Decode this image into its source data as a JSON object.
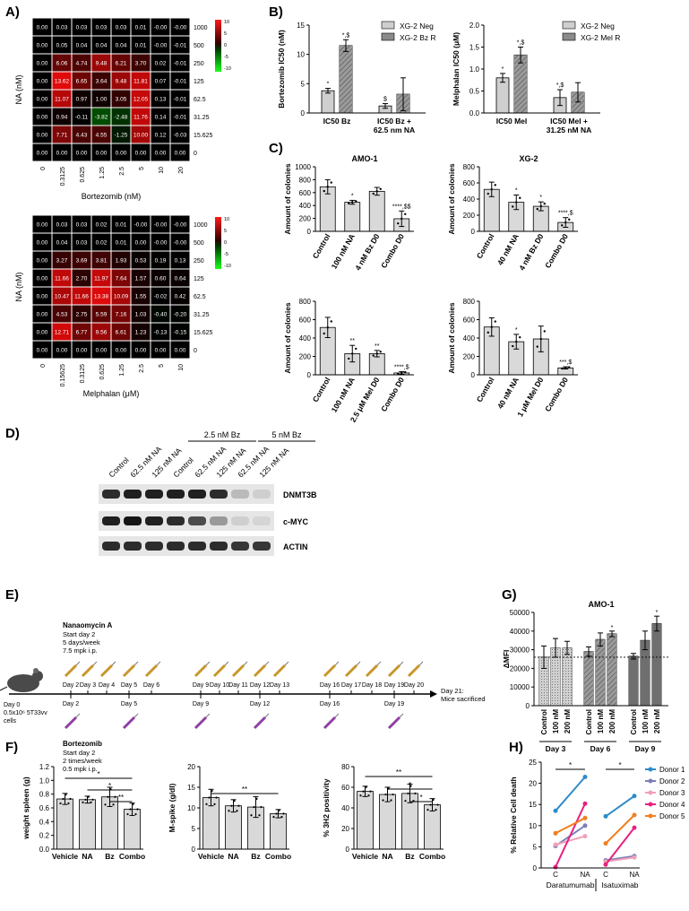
{
  "panel_labels": {
    "A": "A)",
    "B": "B)",
    "C": "C)",
    "D": "D)",
    "E": "E)",
    "F": "F)",
    "G": "G)",
    "H": "H)"
  },
  "chart_data": [
    {
      "type": "heatmap",
      "id": "A1",
      "xlabel": "Bortezomib (nM)",
      "ylabel": "NA (nM)",
      "x_ticks": [
        "0",
        "0.3125",
        "0.625",
        "1.25",
        "2.5",
        "5",
        "10",
        "20"
      ],
      "y_ticks": [
        "1000",
        "500",
        "250",
        "125",
        "62.5",
        "31.25",
        "15.625",
        "0"
      ],
      "colorbar_ticks": [
        "10",
        "5",
        "0",
        "-5",
        "-10"
      ],
      "values": [
        [
          "0.00",
          "0.03",
          "0.03",
          "0.03",
          "0.03",
          "0.01",
          "-0.00",
          "-0.00"
        ],
        [
          "0.00",
          "0.05",
          "0.04",
          "0.04",
          "0.04",
          "0.01",
          "-0.00",
          "-0.01"
        ],
        [
          "0.00",
          "6.06",
          "4.74",
          "9.48",
          "6.21",
          "3.70",
          "0.02",
          "-0.01"
        ],
        [
          "0.00",
          "13.62",
          "6.65",
          "3.64",
          "9.48",
          "11.81",
          "0.07",
          "-0.01"
        ],
        [
          "0.00",
          "11.07",
          "0.97",
          "1.00",
          "3.05",
          "12.05",
          "0.13",
          "-0.01"
        ],
        [
          "0.00",
          "0.94",
          "-0.11",
          "-3.82",
          "-2.48",
          "11.76",
          "0.14",
          "-0.01"
        ],
        [
          "0.00",
          "7.71",
          "4.43",
          "4.55",
          "-1.25",
          "10.00",
          "0.12",
          "-0.03"
        ],
        [
          "0.00",
          "0.00",
          "0.00",
          "0.00",
          "0.00",
          "0.00",
          "0.00",
          "0.00"
        ]
      ]
    },
    {
      "type": "heatmap",
      "id": "A2",
      "xlabel": "Melphalan (μM)",
      "ylabel": "NA (nM)",
      "x_ticks": [
        "0",
        "0.15625",
        "0.3125",
        "0.625",
        "1.25",
        "2.5",
        "5",
        "10"
      ],
      "y_ticks": [
        "1000",
        "500",
        "250",
        "125",
        "62.5",
        "31.25",
        "15.625",
        "0"
      ],
      "colorbar_ticks": [
        "10",
        "5",
        "0",
        "-5",
        "-10"
      ],
      "values": [
        [
          "0.00",
          "0.03",
          "0.03",
          "0.02",
          "0.01",
          "-0.00",
          "-0.00",
          "-0.00"
        ],
        [
          "0.00",
          "0.04",
          "0.03",
          "0.02",
          "0.01",
          "0.00",
          "-0.00",
          "-0.00"
        ],
        [
          "0.00",
          "3.27",
          "3.69",
          "3.81",
          "1.93",
          "0.53",
          "0.19",
          "0.13"
        ],
        [
          "0.00",
          "11.66",
          "2.70",
          "11.97",
          "7.64",
          "1.57",
          "0.60",
          "0.64"
        ],
        [
          "0.00",
          "10.47",
          "11.66",
          "13.38",
          "10.09",
          "1.55",
          "-0.02",
          "0.42"
        ],
        [
          "0.00",
          "4.53",
          "2.75",
          "5.59",
          "7.16",
          "1.03",
          "-0.40",
          "-0.20"
        ],
        [
          "0.00",
          "12.71",
          "6.77",
          "9.56",
          "6.61",
          "1.23",
          "-0.13",
          "-0.15"
        ],
        [
          "0.00",
          "0.00",
          "0.00",
          "0.00",
          "0.00",
          "0.00",
          "0.00",
          "0.00"
        ]
      ]
    },
    {
      "type": "bar",
      "id": "B1",
      "ylabel": "Bortezomib IC50 (nM)",
      "ylim": [
        0,
        15
      ],
      "yticks": [
        "0",
        "5",
        "10",
        "15"
      ],
      "categories": [
        "IC50 Bz",
        "IC50 Bz +\n62.5 nm NA"
      ],
      "series": [
        {
          "name": "XG-2 Neg",
          "values": [
            3.8,
            1.2
          ],
          "err": [
            0.4,
            0.4
          ]
        },
        {
          "name": "XG-2 Bz R",
          "values": [
            11.5,
            3.2
          ],
          "err": [
            1.0,
            2.8
          ]
        }
      ],
      "annotations": [
        "*",
        "*,$",
        "$"
      ],
      "legend": "top-right"
    },
    {
      "type": "bar",
      "id": "B2",
      "ylabel": "Melphalan IC50 (μM)",
      "ylim": [
        0,
        2.0
      ],
      "yticks": [
        "0.0",
        "0.5",
        "1.0",
        "1.5",
        "2.0"
      ],
      "categories": [
        "IC50 Mel",
        "IC50 Mel +\n31.25 nM NA"
      ],
      "series": [
        {
          "name": "XG-2 Neg",
          "values": [
            0.8,
            0.35
          ],
          "err": [
            0.1,
            0.18
          ]
        },
        {
          "name": "XG-2 Mel R",
          "values": [
            1.32,
            0.47
          ],
          "err": [
            0.18,
            0.22
          ]
        }
      ],
      "annotations": [
        "*",
        "*,$",
        "*,$"
      ],
      "legend": "top-right"
    },
    {
      "type": "bar",
      "id": "C1",
      "title": "AMO-1",
      "ylabel": "Amount of colonies",
      "ylim": [
        0,
        1000
      ],
      "yticks": [
        "0",
        "200",
        "400",
        "600",
        "800",
        "1000"
      ],
      "categories": [
        "Control",
        "100 nM NA",
        "4 nM Bz D0",
        "Combo D0"
      ],
      "values": [
        690,
        450,
        620,
        195
      ],
      "err": [
        110,
        30,
        60,
        120
      ],
      "annotations": [
        "",
        "*",
        "",
        "****,$$"
      ]
    },
    {
      "type": "bar",
      "id": "C2",
      "title": "XG-2",
      "ylabel": "Amount of colonies",
      "ylim": [
        0,
        800
      ],
      "yticks": [
        "0",
        "200",
        "400",
        "600",
        "800"
      ],
      "categories": [
        "Control",
        "40 nM NA",
        "4 nM Bz D0",
        "Combo D0"
      ],
      "values": [
        520,
        360,
        310,
        110
      ],
      "err": [
        90,
        90,
        55,
        60
      ],
      "annotations": [
        "",
        "*",
        "*",
        "****,$"
      ]
    },
    {
      "type": "bar",
      "id": "C3",
      "ylabel": "Amount of colonies",
      "ylim": [
        0,
        800
      ],
      "yticks": [
        "0",
        "200",
        "400",
        "600",
        "800"
      ],
      "categories": [
        "Control",
        "100 nM NA",
        "2.5 μM Mel D0",
        "Combo D0"
      ],
      "values": [
        515,
        230,
        230,
        20
      ],
      "err": [
        110,
        90,
        35,
        15
      ],
      "annotations": [
        "",
        "**",
        "**",
        "****,$"
      ]
    },
    {
      "type": "bar",
      "id": "C4",
      "ylabel": "Amount of colonies",
      "ylim": [
        0,
        800
      ],
      "yticks": [
        "0",
        "200",
        "400",
        "600",
        "800"
      ],
      "categories": [
        "Control",
        "40 nM NA",
        "1 μM Mel D0",
        "Combo D0"
      ],
      "values": [
        520,
        360,
        390,
        75
      ],
      "err": [
        100,
        80,
        140,
        12
      ],
      "annotations": [
        "",
        "*",
        "",
        "***,$"
      ]
    },
    {
      "type": "bar",
      "id": "G",
      "title": "AMO-1",
      "ylabel": "ΔMFI",
      "ylim": [
        0,
        50000
      ],
      "yticks": [
        "0",
        "10000",
        "20000",
        "30000",
        "40000",
        "50000"
      ],
      "groups": [
        "Day 3",
        "Day 6",
        "Day 9"
      ],
      "categories": [
        "Control",
        "100 nM",
        "200 nM"
      ],
      "values": [
        [
          26000,
          31000,
          31000
        ],
        [
          29000,
          35500,
          38500
        ],
        [
          26500,
          35000,
          44000
        ]
      ],
      "err": [
        [
          6000,
          5000,
          3500
        ],
        [
          2500,
          3500,
          1500
        ],
        [
          1500,
          5000,
          4000
        ]
      ],
      "annotations": [
        "",
        "",
        "",
        "",
        "",
        "*",
        "",
        "",
        "*"
      ],
      "reference_line": 26000
    },
    {
      "type": "bar",
      "id": "F1",
      "ylabel": "weight spleen (g)",
      "ylim": [
        0,
        1.2
      ],
      "yticks": [
        "0.0",
        "0.2",
        "0.4",
        "0.6",
        "0.8",
        "1.0",
        "1.2"
      ],
      "categories": [
        "Vehicle",
        "NA",
        "Bz",
        "Combo"
      ],
      "values": [
        0.73,
        0.72,
        0.76,
        0.58
      ],
      "err": [
        0.08,
        0.05,
        0.14,
        0.09
      ],
      "significance": [
        "*",
        "*",
        "**"
      ]
    },
    {
      "type": "bar",
      "id": "F2",
      "ylabel": "M-spike (g/dl)",
      "ylim": [
        0,
        20
      ],
      "yticks": [
        "0",
        "5",
        "10",
        "15",
        "20"
      ],
      "categories": [
        "Vehicle",
        "NA",
        "Bz",
        "Combo"
      ],
      "values": [
        12.5,
        10.5,
        10.2,
        8.6
      ],
      "err": [
        2.0,
        1.5,
        2.5,
        1.0
      ],
      "significance": [
        "**"
      ]
    },
    {
      "type": "bar",
      "id": "F3",
      "ylabel": "% 3H2 positivity",
      "ylim": [
        0,
        80
      ],
      "yticks": [
        "0",
        "20",
        "40",
        "60",
        "80"
      ],
      "categories": [
        "Vehicle",
        "NA",
        "Bz",
        "Combo"
      ],
      "values": [
        56,
        53,
        54,
        43
      ],
      "err": [
        5,
        7,
        9,
        6
      ],
      "significance": [
        "**",
        "*",
        "*"
      ]
    },
    {
      "type": "line",
      "id": "H",
      "ylabel": "% Relative Cell death",
      "ylim": [
        0,
        25
      ],
      "yticks": [
        "0",
        "5",
        "10",
        "15",
        "20",
        "25"
      ],
      "groups": [
        "Daratumumab",
        "Isatuximab"
      ],
      "x": [
        "C",
        "NA"
      ],
      "series": [
        {
          "name": "Donor 1",
          "color": "#2e8bc9",
          "values": [
            [
              13.5,
              21.5
            ],
            [
              12.2,
              17.0
            ]
          ]
        },
        {
          "name": "Donor 2",
          "color": "#7b7fb8",
          "values": [
            [
              5.2,
              10.0
            ],
            [
              1.8,
              2.8
            ]
          ]
        },
        {
          "name": "Donor 3",
          "color": "#f2a0b8",
          "values": [
            [
              5.5,
              7.5
            ],
            [
              1.5,
              2.5
            ]
          ]
        },
        {
          "name": "Donor 4",
          "color": "#e8217e",
          "values": [
            [
              0.2,
              15.2
            ],
            [
              0.8,
              9.5
            ]
          ]
        },
        {
          "name": "Donor 5",
          "color": "#f08020",
          "values": [
            [
              8.2,
              11.8
            ],
            [
              5.8,
              12.5
            ]
          ]
        }
      ],
      "significance": [
        "*",
        "*"
      ],
      "legend": "right"
    }
  ],
  "panel_D": {
    "lanes": [
      "Control",
      "62.5 nM NA",
      "125 nM NA",
      "Control",
      "62.5 nM NA",
      "125 nM NA",
      "62.5 nM NA",
      "125 nM NA"
    ],
    "groups": [
      "2.5 nM Bz",
      "5 nM Bz"
    ],
    "bands": [
      "DNMT3B",
      "c-MYC",
      "ACTIN"
    ]
  },
  "panel_E": {
    "na_title": "Nanaomycin A",
    "na_lines": [
      "Start day 2",
      "5 days/week",
      "7.5 mpk i.p."
    ],
    "bz_title": "Bortezomib",
    "bz_lines": [
      "Start day 2",
      "2 times/week",
      "0.5 mpk i.p."
    ],
    "start_lines": [
      "Day 0",
      "0.5x10⁶ 5T33vv",
      "cells"
    ],
    "end_lines": [
      "Day 21:",
      "Mice sacrificed"
    ],
    "na_days": [
      "Day 2",
      "Day 3",
      "Day 4",
      "Day 5",
      "Day 6",
      "Day 9",
      "Day 10",
      "Day 11",
      "Day 12",
      "Day 13",
      "Day 16",
      "Day 17",
      "Day 18",
      "Day 19",
      "Day 20"
    ],
    "bz_days": [
      "Day 2",
      "Day 5",
      "Day 9",
      "Day 12",
      "Day 16",
      "Day 19"
    ]
  }
}
